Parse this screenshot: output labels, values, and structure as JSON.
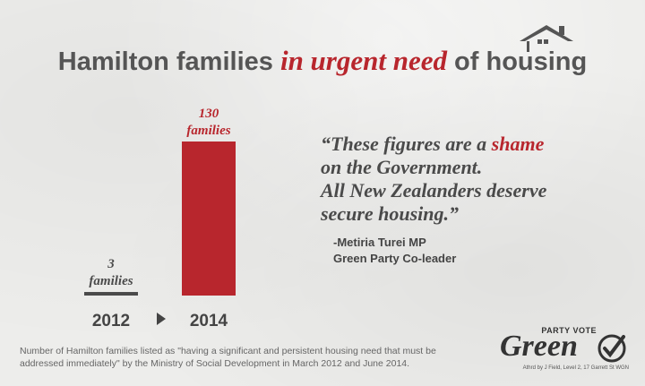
{
  "title": {
    "part1": "Hamilton families",
    "emphasis": "in urgent need",
    "part2": "of housing"
  },
  "chart_data": {
    "type": "bar",
    "categories": [
      "2012",
      "2014"
    ],
    "values": [
      3,
      130
    ],
    "data_labels": [
      {
        "value": "3",
        "unit": "families"
      },
      {
        "value": "130",
        "unit": "families"
      }
    ],
    "title": "",
    "xlabel": "",
    "ylabel": "",
    "ylim": [
      0,
      130
    ],
    "colors": {
      "2012": "#4a4a4a",
      "2014": "#b8262d"
    },
    "grid": false
  },
  "quote": {
    "line1_before": "“These figures are a",
    "line1_emphasis": "shame",
    "line2": "on the Government.",
    "line3": "All New Zealanders deserve",
    "line4": "secure housing.”",
    "attribution_name": "-Metiria Turei MP",
    "attribution_role": "Green Party Co-leader"
  },
  "footnote": "Number of Hamilton families listed as \"having a significant and persistent housing need that must be addressed immediately\" by the Ministry of Social Development in March 2012 and June 2014.",
  "logo": {
    "tagline": "PARTY VOTE",
    "name": "Green",
    "authorisation": "Athrd by J Field, Level 2, 17 Garrett St WGN"
  },
  "icons": {
    "house": "house-roof-icon",
    "arrow": "play-arrow-icon",
    "check": "checkmark-icon"
  },
  "colors": {
    "accent": "#b8262d",
    "text": "#4a4a4a",
    "background": "#ededeb"
  }
}
